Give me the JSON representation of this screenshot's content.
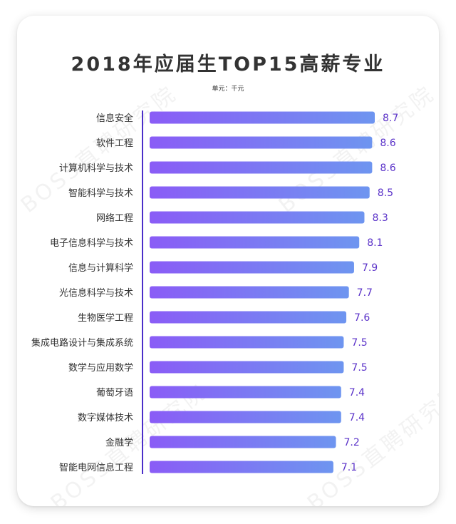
{
  "watermark": "BOSS直聘研究院",
  "chart_data": {
    "type": "bar",
    "orientation": "horizontal",
    "title": "2018年应届生TOP15高薪专业",
    "subtitle": "单元：千元",
    "categories": [
      "信息安全",
      "软件工程",
      "计算机科学与技术",
      "智能科学与技术",
      "网络工程",
      "电子信息科学与技术",
      "信息与计算科学",
      "光信息科学与技术",
      "生物医学工程",
      "集成电路设计与集成系统",
      "数学与应用数学",
      "葡萄牙语",
      "数字媒体技术",
      "金融学",
      "智能电网信息工程"
    ],
    "values": [
      8.7,
      8.6,
      8.6,
      8.5,
      8.3,
      8.1,
      7.9,
      7.7,
      7.6,
      7.5,
      7.5,
      7.4,
      7.4,
      7.2,
      7.1
    ],
    "xlim": [
      0,
      8.7
    ],
    "grid": false,
    "colors": {
      "bar_start": "#8a5cf6",
      "bar_end": "#6e95f0",
      "value_label": "#5b33c9",
      "axis": "#4b2ec9",
      "category_label": "#333333"
    }
  }
}
